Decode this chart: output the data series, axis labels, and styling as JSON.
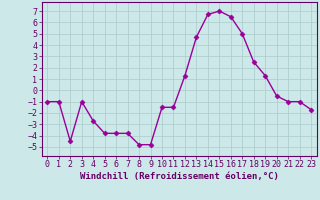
{
  "x": [
    0,
    1,
    2,
    3,
    4,
    5,
    6,
    7,
    8,
    9,
    10,
    11,
    12,
    13,
    14,
    15,
    16,
    17,
    18,
    19,
    20,
    21,
    22,
    23
  ],
  "y": [
    -1,
    -1,
    -4.5,
    -1,
    -2.7,
    -3.8,
    -3.8,
    -3.8,
    -4.8,
    -4.8,
    -1.5,
    -1.5,
    1.3,
    4.7,
    6.7,
    7.0,
    6.5,
    5.0,
    2.5,
    1.3,
    -0.5,
    -1.0,
    -1.0,
    -1.7
  ],
  "line_color": "#990099",
  "marker": "D",
  "markersize": 2.5,
  "linewidth": 1.0,
  "bg_color": "#cce8e8",
  "grid_color": "#aacccc",
  "xlabel": "Windchill (Refroidissement éolien,°C)",
  "xlabel_fontsize": 6.5,
  "tick_fontsize": 6.0,
  "ylim": [
    -5.8,
    7.8
  ],
  "xlim": [
    -0.5,
    23.5
  ],
  "yticks": [
    -5,
    -4,
    -3,
    -2,
    -1,
    0,
    1,
    2,
    3,
    4,
    5,
    6,
    7
  ],
  "xticks": [
    0,
    1,
    2,
    3,
    4,
    5,
    6,
    7,
    8,
    9,
    10,
    11,
    12,
    13,
    14,
    15,
    16,
    17,
    18,
    19,
    20,
    21,
    22,
    23
  ]
}
